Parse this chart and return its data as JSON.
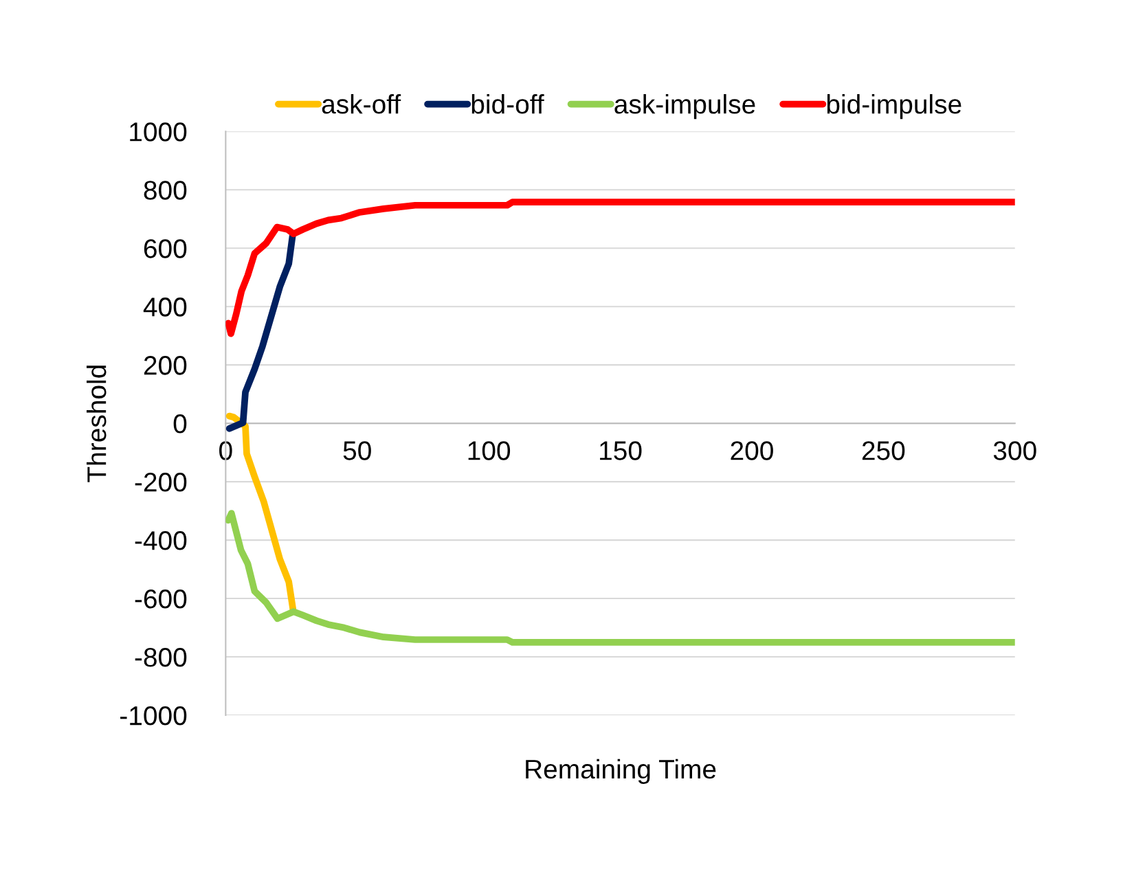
{
  "chart_data": {
    "type": "line",
    "xlabel": "Remaining Time",
    "ylabel": "Threshold",
    "xlim": [
      0,
      300
    ],
    "xticks": [
      0,
      50,
      100,
      150,
      200,
      250,
      300
    ],
    "ylim": [
      -1000,
      1000
    ],
    "yticks": [
      -1000,
      -800,
      -600,
      -400,
      -200,
      0,
      200,
      400,
      600,
      800,
      1000
    ],
    "grid": "y",
    "legend": "top",
    "marker": "none",
    "line_style": "solid",
    "series": [
      {
        "name": "ask-off",
        "color": "#ffc000",
        "x": [
          1.4,
          3,
          7.5,
          8,
          11,
          14.5,
          20.6,
          24,
          25.6
        ],
        "values": [
          25,
          21,
          -10,
          -104,
          -183,
          -269,
          -465,
          -543,
          -638
        ]
      },
      {
        "name": "bid-off",
        "color": "#002060",
        "x": [
          1.4,
          6.6,
          7.5,
          11,
          14,
          20.6,
          24,
          25.4
        ],
        "values": [
          -18,
          2,
          107,
          186,
          264,
          468,
          547,
          641
        ]
      },
      {
        "name": "ask-impulse",
        "color": "#92d050",
        "x": [
          1,
          2.2,
          5.8,
          8.4,
          11,
          15.4,
          19.7,
          25.8,
          29.3,
          34.5,
          39,
          45,
          51,
          60,
          72,
          107,
          109,
          300
        ],
        "values": [
          -332,
          -308,
          -434,
          -481,
          -575,
          -614,
          -669,
          -645,
          -657,
          -676,
          -689,
          -700,
          -716,
          -732,
          -741,
          -741,
          -750,
          -750
        ]
      },
      {
        "name": "bid-impulse",
        "color": "#ff0000",
        "x": [
          1,
          2,
          4,
          6,
          8.4,
          11,
          15.4,
          19.5,
          23.6,
          25.8,
          29.3,
          34.5,
          39,
          44,
          51,
          60,
          72,
          107,
          109,
          300
        ],
        "values": [
          343,
          307,
          374,
          452,
          507,
          582,
          617,
          672,
          664,
          649,
          664,
          684,
          696,
          703,
          723,
          735,
          747,
          747,
          758,
          758
        ]
      }
    ]
  }
}
